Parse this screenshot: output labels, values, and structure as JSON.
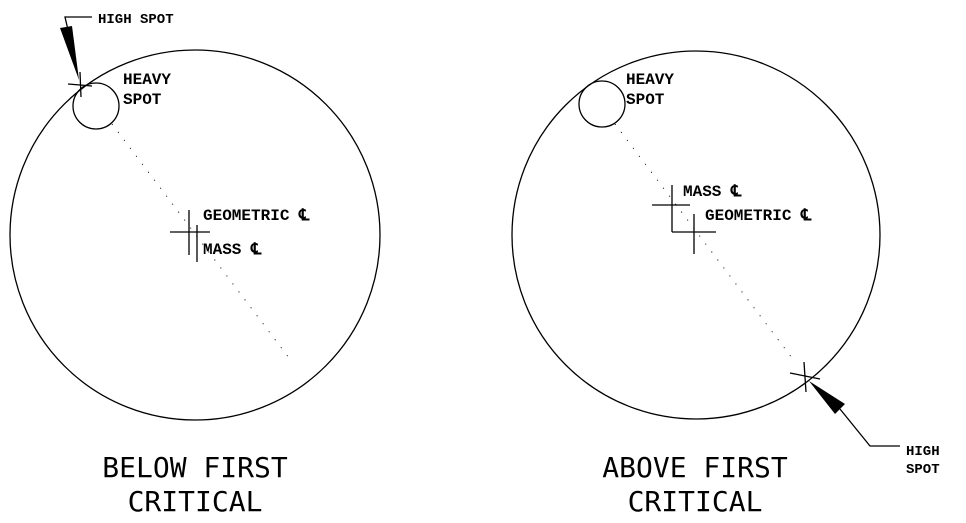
{
  "panels": [
    {
      "high_spot": [
        "HIGH SPOT"
      ],
      "heavy_spot": [
        "HEAVY",
        "SPOT"
      ],
      "geometric": "GEOMETRIC ℄",
      "mass": "MASS ℄",
      "caption": [
        "BELOW FIRST",
        "CRITICAL"
      ]
    },
    {
      "high_spot": [
        "HIGH",
        "SPOT"
      ],
      "heavy_spot": [
        "HEAVY",
        "SPOT"
      ],
      "geometric": "GEOMETRIC ℄",
      "mass": "MASS ℄",
      "caption": [
        "ABOVE FIRST",
        "CRITICAL"
      ]
    }
  ]
}
